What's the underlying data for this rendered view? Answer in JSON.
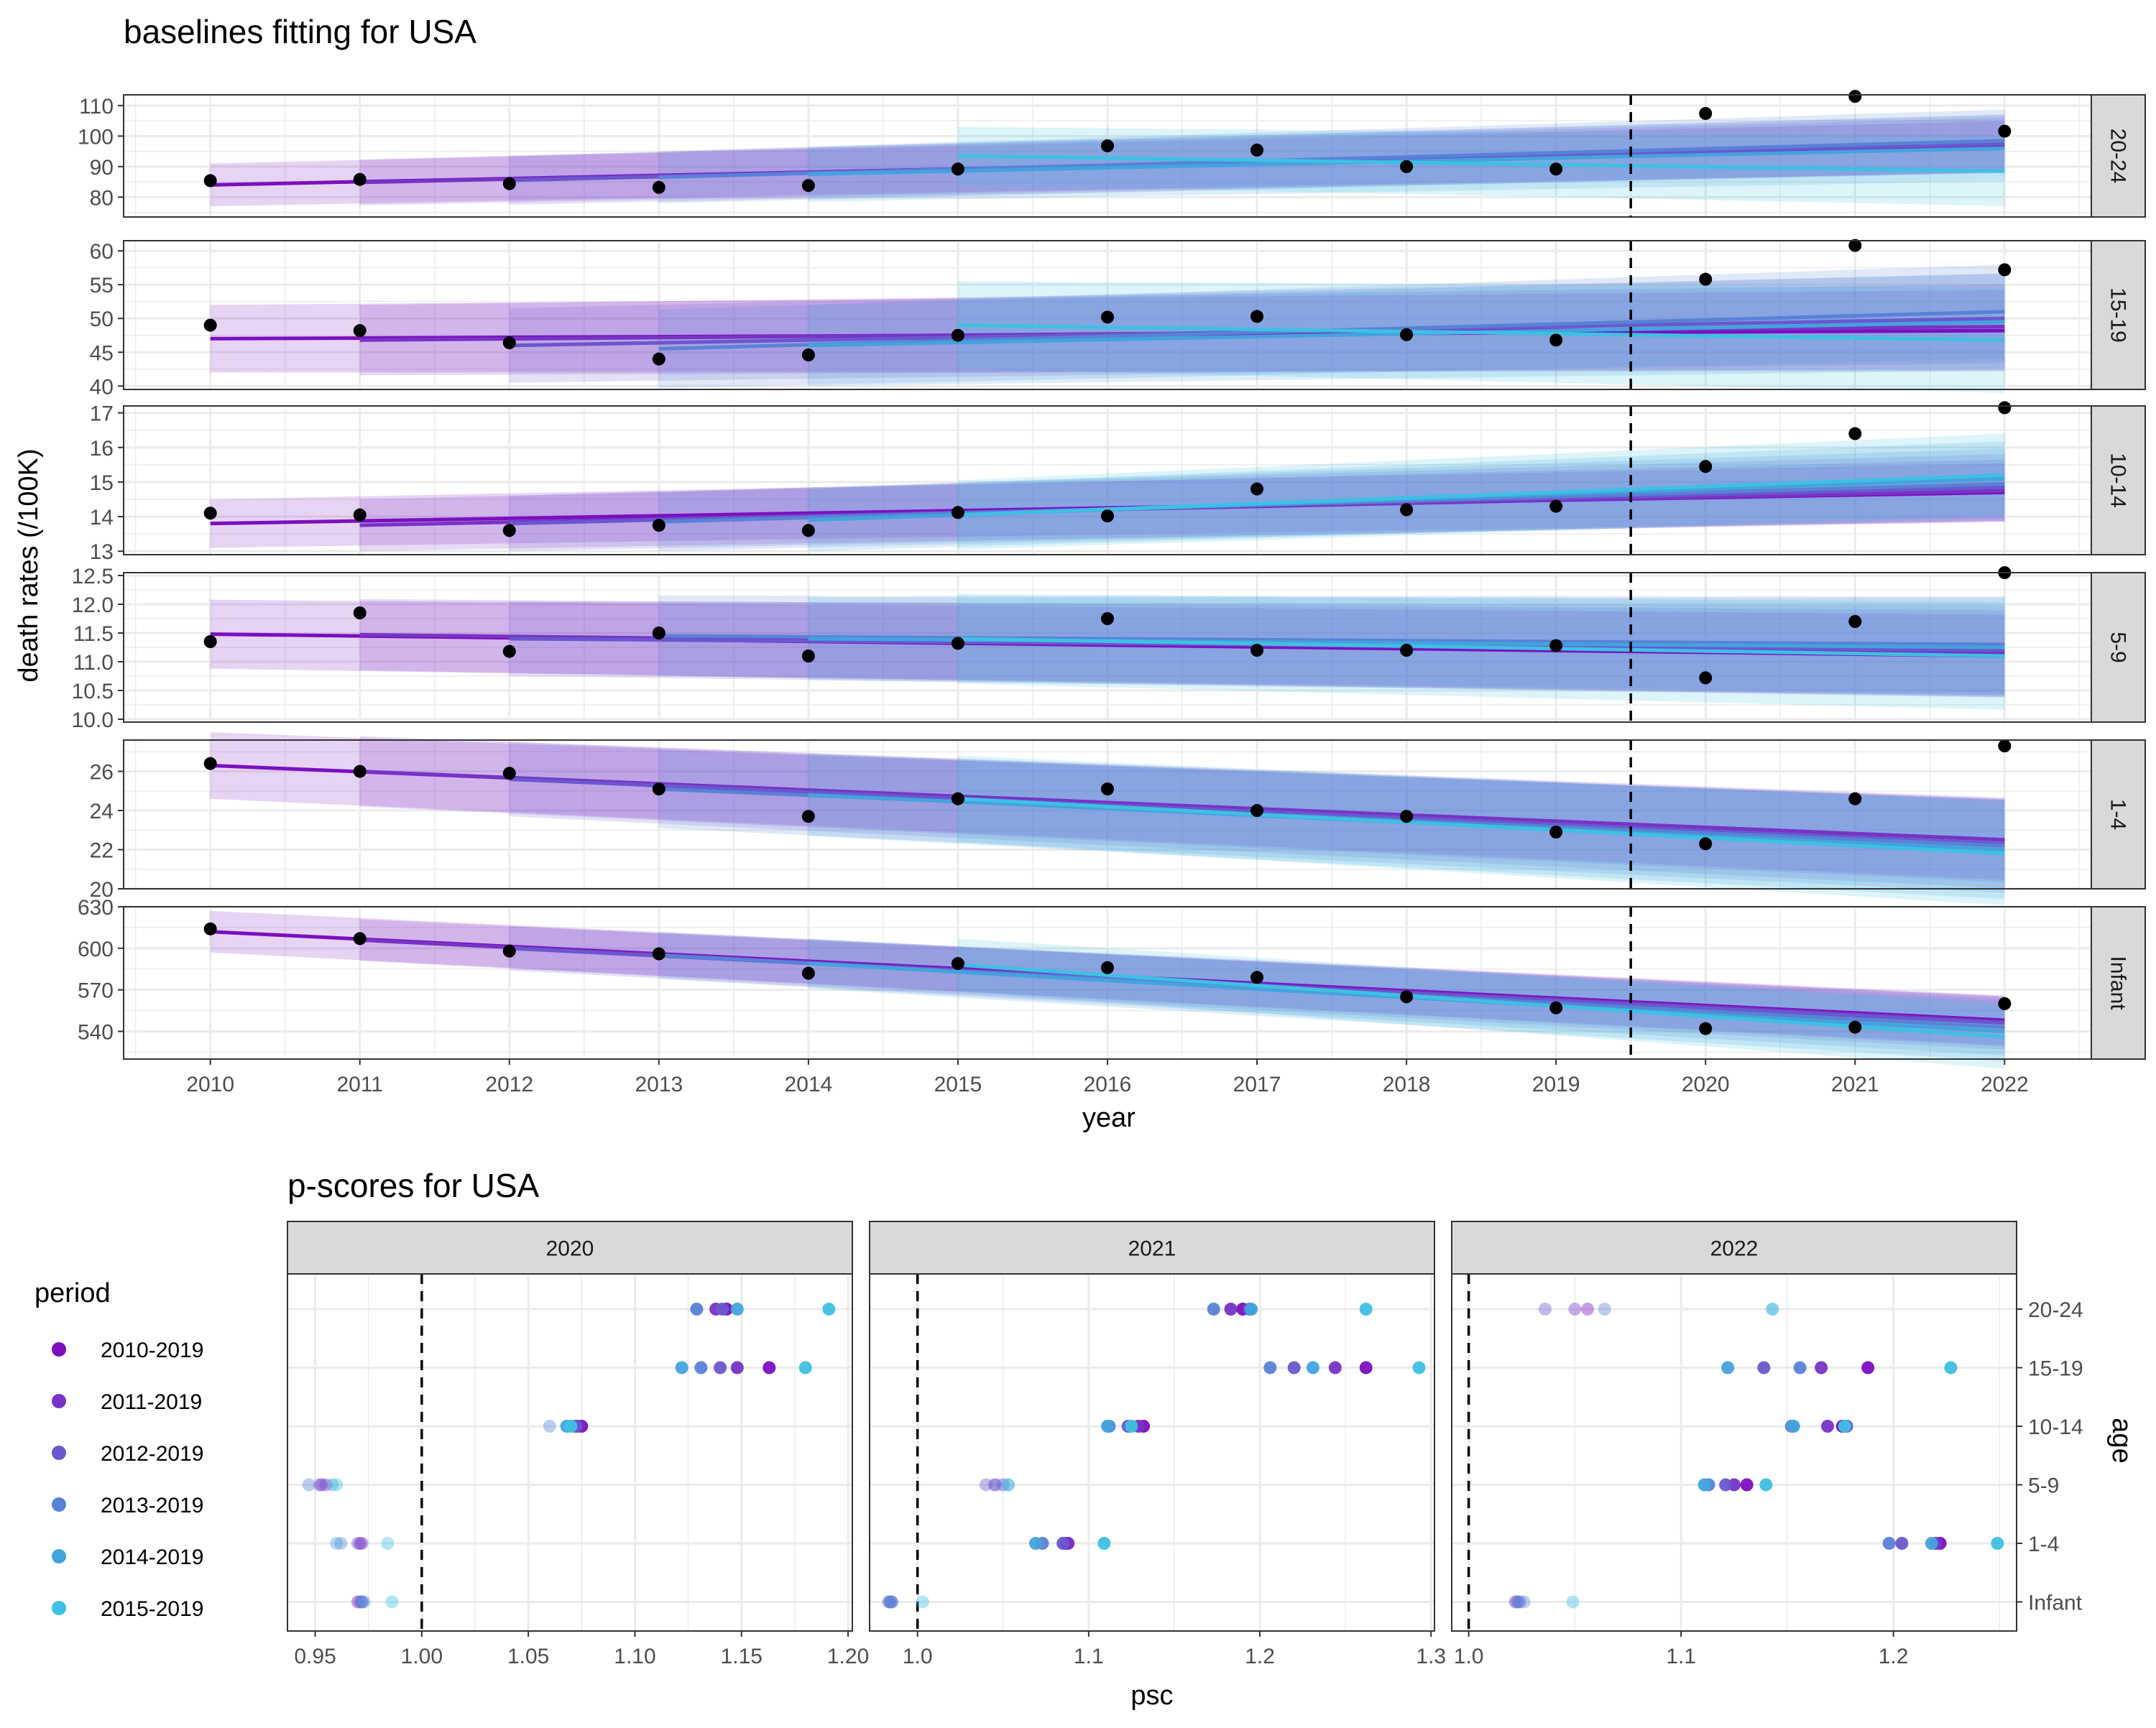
{
  "colors": {
    "2010-2019": "#7B0FBF",
    "2011-2019": "#7733C6",
    "2012-2019": "#6A57CE",
    "2013-2019": "#5882D6",
    "2014-2019": "#43A3DD",
    "2015-2019": "#3EC0E3",
    "observed": "#000000",
    "strip_fill": "#D9D9D9",
    "grid": "#EBEBEB"
  },
  "chart_data": [
    {
      "type": "line",
      "title": "baselines fitting for USA",
      "xlabel": "year",
      "ylabel": "death rates (/100K)",
      "x_ticks": [
        2010,
        2011,
        2012,
        2013,
        2014,
        2015,
        2016,
        2017,
        2018,
        2019,
        2020,
        2021,
        2022
      ],
      "xlim": [
        2009.42,
        2022.58
      ],
      "reference_line": {
        "x": 2019.5,
        "style": "dashed"
      },
      "periods": [
        "2010-2019",
        "2011-2019",
        "2012-2019",
        "2013-2019",
        "2014-2019",
        "2015-2019"
      ],
      "facets": [
        {
          "strip": "20-24",
          "ylim": [
            73.5,
            113.5
          ],
          "y_ticks": [
            80,
            90,
            100,
            110
          ],
          "observed": [
            85.4,
            85.8,
            84.4,
            83.2,
            83.8,
            89.2,
            96.8,
            95.4,
            90.0,
            89.2,
            107.4,
            113.0,
            101.6
          ],
          "baselines": [
            {
              "period": "2010-2019",
              "start": 2010,
              "y_start": 84.0,
              "y_end": 96.5,
              "band": 7.0
            },
            {
              "period": "2011-2019",
              "start": 2011,
              "y_start": 84.8,
              "y_end": 97.0,
              "band": 7.5
            },
            {
              "period": "2012-2019",
              "start": 2012,
              "y_start": 85.5,
              "y_end": 97.5,
              "band": 8.0
            },
            {
              "period": "2013-2019",
              "start": 2013,
              "y_start": 86.5,
              "y_end": 98.5,
              "band": 8.5
            },
            {
              "period": "2014-2019",
              "start": 2014,
              "y_start": 87.5,
              "y_end": 96.0,
              "band": 9.0
            },
            {
              "period": "2015-2019",
              "start": 2015,
              "y_start": 93.5,
              "y_end": 88.5,
              "band": 9.5
            }
          ]
        },
        {
          "strip": "15-19",
          "ylim": [
            39.5,
            61.5
          ],
          "y_ticks": [
            40,
            45,
            50,
            55,
            60
          ],
          "observed": [
            49.0,
            48.2,
            46.4,
            44.0,
            44.6,
            47.5,
            50.2,
            50.3,
            47.6,
            46.8,
            55.8,
            60.8,
            57.2
          ],
          "baselines": [
            {
              "period": "2010-2019",
              "start": 2010,
              "y_start": 47.0,
              "y_end": 48.2,
              "band": 5.0
            },
            {
              "period": "2011-2019",
              "start": 2011,
              "y_start": 46.8,
              "y_end": 48.8,
              "band": 5.2
            },
            {
              "period": "2012-2019",
              "start": 2012,
              "y_start": 46.0,
              "y_end": 50.0,
              "band": 5.5
            },
            {
              "period": "2013-2019",
              "start": 2013,
              "y_start": 45.5,
              "y_end": 51.0,
              "band": 5.8
            },
            {
              "period": "2014-2019",
              "start": 2014,
              "y_start": 46.0,
              "y_end": 49.5,
              "band": 6.0
            },
            {
              "period": "2015-2019",
              "start": 2015,
              "y_start": 49.0,
              "y_end": 46.8,
              "band": 6.5
            }
          ]
        },
        {
          "strip": "10-14",
          "ylim": [
            12.9,
            17.2
          ],
          "y_ticks": [
            13,
            14,
            15,
            16,
            17
          ],
          "observed": [
            14.1,
            14.05,
            13.6,
            13.75,
            13.6,
            14.12,
            14.02,
            14.8,
            14.2,
            14.3,
            15.45,
            16.4,
            17.15
          ],
          "baselines": [
            {
              "period": "2010-2019",
              "start": 2010,
              "y_start": 13.8,
              "y_end": 14.7,
              "band": 0.7
            },
            {
              "period": "2011-2019",
              "start": 2011,
              "y_start": 13.75,
              "y_end": 14.75,
              "band": 0.75
            },
            {
              "period": "2012-2019",
              "start": 2012,
              "y_start": 13.8,
              "y_end": 14.85,
              "band": 0.8
            },
            {
              "period": "2013-2019",
              "start": 2013,
              "y_start": 13.85,
              "y_end": 14.95,
              "band": 0.85
            },
            {
              "period": "2014-2019",
              "start": 2014,
              "y_start": 13.9,
              "y_end": 15.1,
              "band": 0.9
            },
            {
              "period": "2015-2019",
              "start": 2015,
              "y_start": 14.05,
              "y_end": 15.2,
              "band": 1.0
            }
          ]
        },
        {
          "strip": "5-9",
          "ylim": [
            9.95,
            12.55
          ],
          "y_ticks": [
            10.0,
            10.5,
            11.0,
            11.5,
            12.0,
            12.5
          ],
          "observed": [
            11.35,
            11.85,
            11.18,
            11.5,
            11.1,
            11.32,
            11.75,
            11.2,
            11.2,
            11.28,
            10.72,
            11.7,
            12.55
          ],
          "baselines": [
            {
              "period": "2010-2019",
              "start": 2010,
              "y_start": 11.48,
              "y_end": 11.1,
              "band": 0.6
            },
            {
              "period": "2011-2019",
              "start": 2011,
              "y_start": 11.47,
              "y_end": 11.15,
              "band": 0.62
            },
            {
              "period": "2012-2019",
              "start": 2012,
              "y_start": 11.4,
              "y_end": 11.2,
              "band": 0.65
            },
            {
              "period": "2013-2019",
              "start": 2013,
              "y_start": 11.45,
              "y_end": 11.3,
              "band": 0.7
            },
            {
              "period": "2014-2019",
              "start": 2014,
              "y_start": 11.4,
              "y_end": 11.25,
              "band": 0.72
            },
            {
              "period": "2015-2019",
              "start": 2015,
              "y_start": 11.4,
              "y_end": 11.1,
              "band": 0.78
            }
          ]
        },
        {
          "strip": "1-4",
          "ylim": [
            20.0,
            27.6
          ],
          "y_ticks": [
            20,
            22,
            24,
            26
          ],
          "observed": [
            26.4,
            26.0,
            25.9,
            25.1,
            23.7,
            24.6,
            25.1,
            24.0,
            23.7,
            22.9,
            22.3,
            24.6,
            27.3
          ],
          "baselines": [
            {
              "period": "2010-2019",
              "start": 2010,
              "y_start": 26.3,
              "y_end": 22.5,
              "band": 1.7
            },
            {
              "period": "2011-2019",
              "start": 2011,
              "y_start": 26.0,
              "y_end": 22.5,
              "band": 1.8
            },
            {
              "period": "2012-2019",
              "start": 2012,
              "y_start": 25.6,
              "y_end": 22.3,
              "band": 1.9
            },
            {
              "period": "2013-2019",
              "start": 2013,
              "y_start": 25.1,
              "y_end": 22.2,
              "band": 2.0
            },
            {
              "period": "2014-2019",
              "start": 2014,
              "y_start": 24.8,
              "y_end": 22.0,
              "band": 2.1
            },
            {
              "period": "2015-2019",
              "start": 2015,
              "y_start": 24.6,
              "y_end": 21.8,
              "band": 2.2
            }
          ]
        },
        {
          "strip": "Infant",
          "ylim": [
            520,
            630
          ],
          "y_ticks": [
            540,
            570,
            600,
            630
          ],
          "observed": [
            614,
            607,
            598,
            596,
            582,
            589,
            586,
            579,
            565,
            557,
            542,
            543,
            560
          ],
          "baselines": [
            {
              "period": "2010-2019",
              "start": 2010,
              "y_start": 612,
              "y_end": 548,
              "band": 15
            },
            {
              "period": "2011-2019",
              "start": 2011,
              "y_start": 606,
              "y_end": 547,
              "band": 15
            },
            {
              "period": "2012-2019",
              "start": 2012,
              "y_start": 600,
              "y_end": 546,
              "band": 16
            },
            {
              "period": "2013-2019",
              "start": 2013,
              "y_start": 595,
              "y_end": 543,
              "band": 17
            },
            {
              "period": "2014-2019",
              "start": 2014,
              "y_start": 589,
              "y_end": 540,
              "band": 18
            },
            {
              "period": "2015-2019",
              "start": 2015,
              "y_start": 588,
              "y_end": 536,
              "band": 19
            }
          ]
        }
      ]
    },
    {
      "type": "scatter",
      "title": "p-scores for USA",
      "xlabel": "psc",
      "ylabel": "age",
      "legend": {
        "title": "period",
        "placement": "left"
      },
      "categories": [
        "20-24",
        "15-19",
        "10-14",
        "5-9",
        "1-4",
        "Infant"
      ],
      "periods": [
        "2010-2019",
        "2011-2019",
        "2012-2019",
        "2013-2019",
        "2014-2019",
        "2015-2019"
      ],
      "reference_line": {
        "x": 1.0,
        "style": "dashed"
      },
      "facets": [
        {
          "strip": "2020",
          "xlim": [
            0.937,
            1.202
          ],
          "x_ticks": [
            0.95,
            1.0,
            1.05,
            1.1,
            1.15,
            1.2
          ],
          "x_tick_labels": [
            "0.95",
            "1.00",
            "1.05",
            "1.10",
            "1.15",
            "1.20"
          ],
          "values": {
            "20-24": [
              1.143,
              1.138,
              1.141,
              1.129,
              1.148,
              1.191
            ],
            "15-19": [
              1.163,
              1.148,
              1.14,
              1.131,
              1.122,
              1.18
            ],
            "10-14": [
              1.075,
              1.073,
              1.072,
              1.06,
              1.068,
              1.07
            ],
            "5-9": [
              0.953,
              0.955,
              0.952,
              0.947,
              0.958,
              0.96
            ],
            "1-4": [
              0.971,
              0.972,
              0.97,
              0.962,
              0.96,
              0.984
            ],
            "Infant": [
              0.97,
              0.972,
              0.971,
              0.972,
              0.973,
              0.986
            ]
          }
        },
        {
          "strip": "2021",
          "xlim": [
            0.972,
            1.302
          ],
          "x_ticks": [
            1.0,
            1.1,
            1.2,
            1.3
          ],
          "x_tick_labels": [
            "1.0",
            "1.1",
            "1.2",
            "1.3"
          ],
          "values": {
            "20-24": [
              1.19,
              1.183,
              1.194,
              1.173,
              1.195,
              1.262
            ],
            "15-19": [
              1.262,
              1.244,
              1.22,
              1.206,
              1.231,
              1.293
            ],
            "10-14": [
              1.132,
              1.129,
              1.123,
              1.112,
              1.111,
              1.125
            ],
            "5-9": [
              1.045,
              1.05,
              1.04,
              1.046,
              1.053,
              1.053
            ],
            "1-4": [
              1.087,
              1.088,
              1.085,
              1.073,
              1.069,
              1.109
            ],
            "Infant": [
              0.985,
              0.984,
              0.983,
              0.984,
              0.985,
              1.003
            ]
          }
        },
        {
          "strip": "2022",
          "xlim": [
            0.992,
            1.258
          ],
          "x_ticks": [
            1.0,
            1.1,
            1.2
          ],
          "x_tick_labels": [
            "1.0",
            "1.1",
            "1.2"
          ],
          "values": {
            "20-24": [
              1.056,
              1.05,
              1.036,
              1.064,
              1.143,
              1.143
            ],
            "15-19": [
              1.188,
              1.166,
              1.139,
              1.156,
              1.122,
              1.227
            ],
            "10-14": [
              1.176,
              1.169,
              1.178,
              1.152,
              1.153,
              1.177
            ],
            "5-9": [
              1.131,
              1.125,
              1.121,
              1.113,
              1.111,
              1.14
            ],
            "1-4": [
              1.222,
              1.22,
              1.204,
              1.198,
              1.218,
              1.249
            ],
            "Infant": [
              1.022,
              1.024,
              1.023,
              1.026,
              1.023,
              1.049
            ]
          }
        }
      ]
    }
  ]
}
